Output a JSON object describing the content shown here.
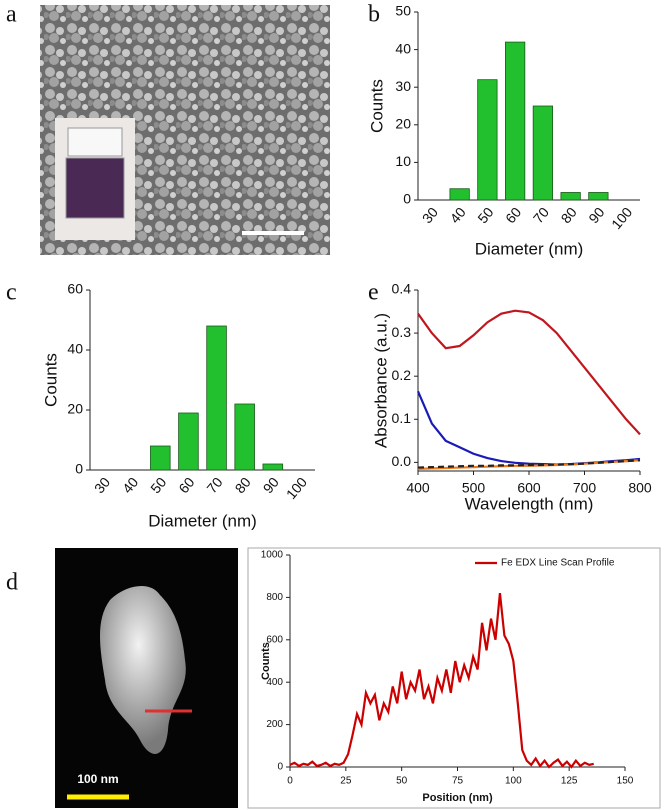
{
  "panel_labels": [
    "a",
    "b",
    "c",
    "e",
    "d"
  ],
  "scale_bar_label": "100 nm",
  "chart_data": [
    {
      "type": "bar",
      "xlabel": "Diameter (nm)",
      "ylabel": "Counts",
      "categories": [
        "30",
        "40",
        "50",
        "60",
        "70",
        "80",
        "90",
        "100"
      ],
      "values": [
        0,
        3,
        32,
        42,
        25,
        2,
        2,
        0
      ],
      "color": "#22c02e",
      "ylim": [
        0,
        50
      ],
      "yticks": [
        0,
        10,
        20,
        30,
        40,
        50
      ]
    },
    {
      "type": "bar",
      "xlabel": "Diameter (nm)",
      "ylabel": "Counts",
      "categories": [
        "30",
        "40",
        "50",
        "60",
        "70",
        "80",
        "90",
        "100"
      ],
      "values": [
        0,
        0,
        8,
        19,
        48,
        22,
        2,
        0
      ],
      "color": "#22c02e",
      "ylim": [
        0,
        60
      ],
      "yticks": [
        0,
        20,
        40,
        60
      ]
    },
    {
      "type": "line",
      "xlabel": "Wavelength (nm)",
      "ylabel": "Absorbance (a.u.)",
      "x": [
        400,
        425,
        450,
        475,
        500,
        525,
        550,
        575,
        600,
        625,
        650,
        675,
        700,
        725,
        750,
        775,
        800
      ],
      "series": [
        {
          "color": "#c0171e",
          "values": [
            0.345,
            0.3,
            0.265,
            0.27,
            0.295,
            0.325,
            0.345,
            0.352,
            0.348,
            0.33,
            0.3,
            0.26,
            0.22,
            0.18,
            0.14,
            0.1,
            0.065
          ]
        },
        {
          "color": "#1a1ab8",
          "values": [
            0.165,
            0.09,
            0.05,
            0.035,
            0.02,
            0.01,
            0.003,
            -0.001,
            -0.003,
            -0.004,
            -0.005,
            -0.004,
            -0.002,
            0,
            0.003,
            0.005,
            0.008
          ]
        },
        {
          "color": "#f07a1a",
          "values": [
            -0.015,
            -0.014,
            -0.013,
            -0.012,
            -0.011,
            -0.01,
            -0.009,
            -0.008,
            -0.008,
            -0.007,
            -0.006,
            -0.005,
            -0.003,
            -0.001,
            0.001,
            0.003,
            0.005
          ]
        },
        {
          "color": "#222222",
          "dashed": true,
          "values": [
            -0.012,
            -0.011,
            -0.01,
            -0.009,
            -0.008,
            -0.008,
            -0.007,
            -0.007,
            -0.006,
            -0.006,
            -0.005,
            -0.004,
            -0.003,
            -0.001,
            0.001,
            0.003,
            0.005
          ]
        }
      ],
      "xlim": [
        400,
        800
      ],
      "xticks": [
        400,
        500,
        600,
        700,
        800
      ],
      "ylim": [
        -0.02,
        0.4
      ],
      "yticks": [
        {
          "value": 0,
          "label": "0.0"
        },
        0.1,
        0.2,
        0.3,
        0.4
      ]
    },
    {
      "type": "line",
      "xlabel": "Position (nm)",
      "ylabel": "Counts",
      "legend": "upper right",
      "x": [
        0,
        2,
        4,
        6,
        8,
        10,
        12,
        14,
        16,
        18,
        20,
        22,
        24,
        26,
        28,
        30,
        32,
        34,
        36,
        38,
        40,
        42,
        44,
        46,
        48,
        50,
        52,
        54,
        56,
        58,
        60,
        62,
        64,
        66,
        68,
        70,
        72,
        74,
        76,
        78,
        80,
        82,
        84,
        86,
        88,
        90,
        92,
        94,
        96,
        98,
        100,
        102,
        104,
        106,
        108,
        110,
        112,
        114,
        116,
        118,
        120,
        122,
        124,
        126,
        128,
        130,
        132,
        134,
        136
      ],
      "series": [
        {
          "name": "Fe EDX Line Scan Profile",
          "color": "#cc0000",
          "values": [
            10,
            20,
            5,
            15,
            10,
            25,
            5,
            10,
            20,
            5,
            15,
            10,
            20,
            60,
            150,
            250,
            200,
            350,
            300,
            340,
            220,
            300,
            260,
            380,
            300,
            450,
            320,
            400,
            360,
            460,
            320,
            380,
            300,
            420,
            360,
            460,
            350,
            500,
            400,
            480,
            420,
            520,
            460,
            680,
            550,
            700,
            600,
            820,
            620,
            580,
            500,
            300,
            80,
            30,
            10,
            40,
            5,
            30,
            0,
            20,
            35,
            5,
            25,
            0,
            30,
            5,
            20,
            10,
            15
          ]
        }
      ],
      "xlim": [
        0,
        150
      ],
      "xticks": [
        0,
        25,
        50,
        75,
        100,
        125,
        150
      ],
      "ylim": [
        0,
        1000
      ],
      "yticks": [
        0,
        200,
        400,
        600,
        800,
        1000
      ]
    }
  ]
}
